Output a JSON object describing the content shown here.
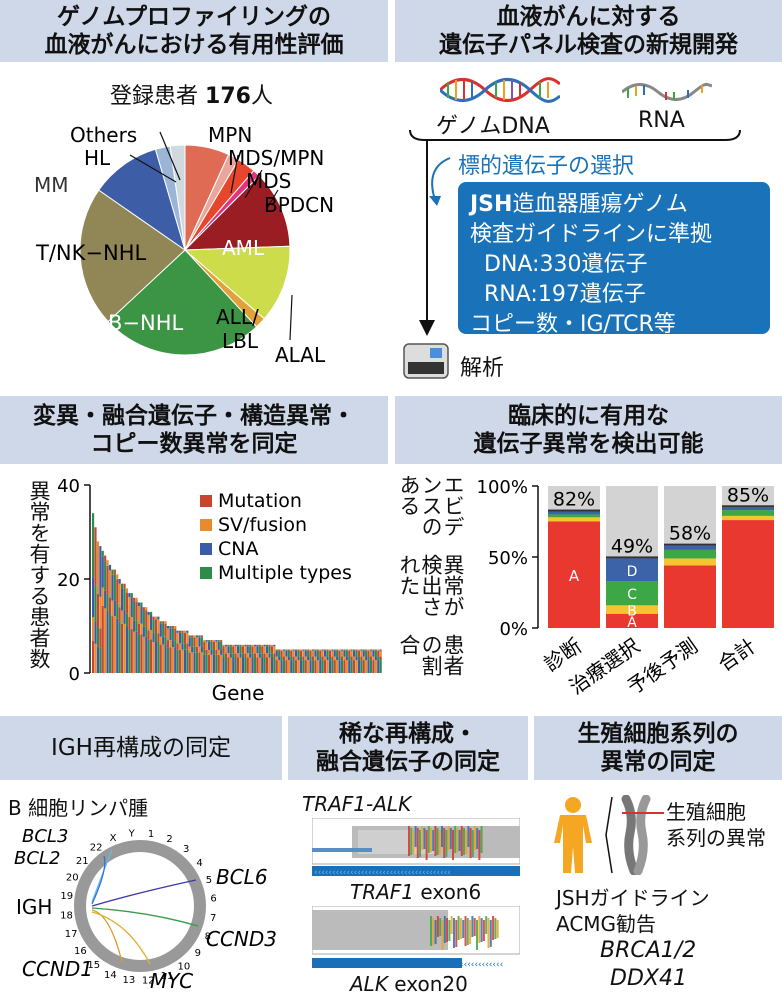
{
  "panels": {
    "p1_title_1": "ゲノムプロファイリングの",
    "p1_title_2": "血液がんにおける有用性評価",
    "p2_title_1": "血液がんに対する",
    "p2_title_2": "遺伝子パネル検査の新規開発",
    "p3_title_1": "変異・融合遺伝子・構造異常・",
    "p3_title_2": "コピー数異常を同定",
    "p4_title_1": "臨床的に有用な",
    "p4_title_2": "遺伝子異常を検出可能",
    "p5_title": "IGH再構成の同定",
    "p6_title_1": "稀な再構成・",
    "p6_title_2": "融合遺伝子の同定",
    "p7_title_1": "生殖細胞系列の",
    "p7_title_2": "異常の同定"
  },
  "pie": {
    "registered_label": "登録患者",
    "registered_count": "176",
    "registered_unit": "人",
    "slice_labels": [
      "MPN",
      "MDS/MPN",
      "MDS",
      "BPDCN",
      "AML",
      "ALL/",
      "LBL",
      "ALAL",
      "B−NHL",
      "T/NK−NHL",
      "MM",
      "HL",
      "Others"
    ]
  },
  "pipeline": {
    "dna_label": "ゲノムDNA",
    "rna_label": "RNA",
    "select_label": "標的遺伝子の選択",
    "box_line1_bold": "JSH",
    "box_line1": "造血器腫瘍ゲノム",
    "box_line2": "検査ガイドラインに準拠",
    "box_line3": "DNA:330遺伝子",
    "box_line4": "RNA:197遺伝子",
    "box_line5": "コピー数・IG/TCR等",
    "analysis_label": "解析"
  },
  "bar_chart": {
    "ylabel": "異常を有する患者数",
    "xlabel": "Gene",
    "yticks": [
      "40",
      "20",
      "0"
    ],
    "legend": [
      "Mutation",
      "SV/fusion",
      "CNA",
      "Multiple types"
    ]
  },
  "stack_chart": {
    "ylabel_1": "エビデンスのある",
    "ylabel_2": "異常が検出された",
    "ylabel_3": "患者の割合",
    "yticks": [
      "100%",
      "50%",
      "0%"
    ],
    "categories": [
      "診断",
      "治療選択",
      "予後予測",
      "合計"
    ],
    "totals": [
      "82%",
      "49%",
      "58%",
      "85%"
    ],
    "segment_letters": [
      "A",
      "B",
      "C",
      "D"
    ]
  },
  "igh": {
    "subtitle": "B 細胞リンパ腫",
    "labels": [
      "BCL3",
      "BCL2",
      "IGH",
      "BCL6",
      "CCND3",
      "CCND1",
      "MYC"
    ],
    "chrom_numbers": [
      "1",
      "2",
      "3",
      "4",
      "5",
      "6",
      "7",
      "8",
      "9",
      "10",
      "11",
      "12",
      "13",
      "14",
      "15",
      "16",
      "17",
      "18",
      "19",
      "20",
      "21",
      "22",
      "X",
      "Y"
    ]
  },
  "rare": {
    "fusion_title": "TRAF1-ALK",
    "exon1_gene": "TRAF1",
    "exon1_suffix": " exon6",
    "exon2_gene": "ALK",
    "exon2_suffix": " exon20"
  },
  "germline": {
    "label_1": "生殖細胞",
    "label_2": "系列の異常",
    "guideline_1": "JSHガイドライン",
    "guideline_2": "ACMG勧告",
    "gene_1": "BRCA1/2",
    "gene_2": "DDX41"
  },
  "chart_data": [
    {
      "type": "pie",
      "title": "",
      "categories": [
        "MPN",
        "MDS/MPN",
        "MDS",
        "BPDCN",
        "AML",
        "ALL/LBL",
        "ALAL",
        "B−NHL",
        "T/NK−NHL",
        "MM",
        "HL",
        "Others"
      ],
      "values": [
        12,
        3,
        5,
        2,
        21,
        21,
        3,
        44,
        38,
        19,
        4,
        4
      ],
      "colors": [
        "#e06b55",
        "#e9a79b",
        "#e8462c",
        "#e5327f",
        "#9a1d24",
        "#cddc4b",
        "#e1a23a",
        "#3c9445",
        "#918656",
        "#3d5ea6",
        "#9bb5d6",
        "#cfd9e0"
      ]
    },
    {
      "type": "bar",
      "title": "",
      "xlabel": "Gene",
      "ylabel": "異常を有する患者数",
      "ylim": [
        0,
        40
      ],
      "series": [
        {
          "name": "Mutation",
          "color": "#c9452d"
        },
        {
          "name": "SV/fusion",
          "color": "#e88a2e"
        },
        {
          "name": "CNA",
          "color": "#3a5ba8"
        },
        {
          "name": "Multiple types",
          "color": "#2e8b4a"
        }
      ],
      "values": [
        34,
        31,
        28,
        27,
        26,
        25,
        24,
        23,
        22,
        22,
        21,
        20,
        19,
        19,
        18,
        17,
        17,
        16,
        16,
        15,
        15,
        14,
        14,
        13,
        13,
        12,
        12,
        12,
        11,
        11,
        11,
        10,
        10,
        10,
        10,
        9,
        9,
        9,
        9,
        9,
        8,
        8,
        8,
        8,
        8,
        8,
        7,
        7,
        7,
        7,
        7,
        7,
        7,
        7,
        6,
        6,
        6,
        6,
        6,
        6,
        6,
        6,
        6,
        6,
        6,
        6,
        6,
        6,
        6,
        6,
        6,
        6,
        6,
        6,
        6,
        6,
        5,
        5,
        5,
        5,
        5,
        5,
        5,
        5,
        5,
        5,
        5,
        5,
        5,
        5,
        5,
        5,
        5,
        5,
        5,
        5,
        5,
        5,
        5,
        5,
        5,
        5,
        5,
        5,
        5,
        5,
        5,
        5,
        5,
        5,
        5,
        5,
        5,
        5,
        5,
        5,
        5,
        5,
        5,
        5
      ]
    },
    {
      "type": "bar",
      "title": "",
      "ylabel": "エビデンスのある異常が検出された患者の割合",
      "ylim": [
        0,
        100
      ],
      "categories": [
        "診断",
        "治療選択",
        "予後予測",
        "合計"
      ],
      "series": [
        {
          "name": "A",
          "color": "#e8382f",
          "values": [
            75,
            10,
            44,
            76
          ]
        },
        {
          "name": "B",
          "color": "#f2c531",
          "values": [
            3,
            6,
            5,
            3
          ]
        },
        {
          "name": "C",
          "color": "#3ba845",
          "values": [
            2,
            17,
            6,
            4
          ]
        },
        {
          "name": "D",
          "color": "#3c63a8",
          "values": [
            2,
            16,
            3,
            2
          ]
        }
      ],
      "totals": [
        82,
        49,
        58,
        85
      ]
    }
  ]
}
